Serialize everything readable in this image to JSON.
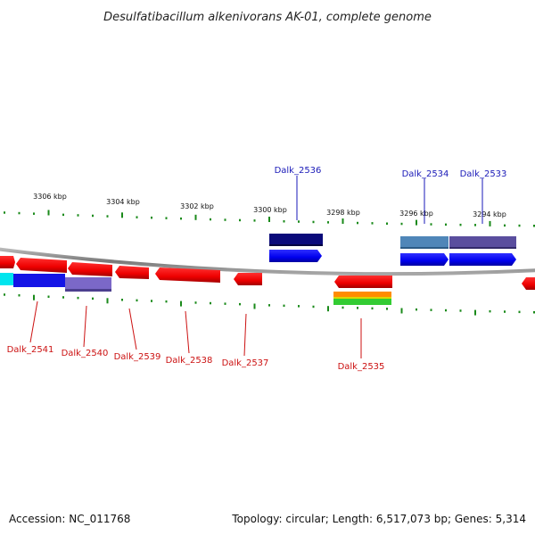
{
  "title": "Desulfatibacillum alkenivorans AK-01, complete genome",
  "footer": {
    "accession": "Accession: NC_011768",
    "summary": "Topology: circular; Length: 6,517,073 bp; Genes: 5,314"
  },
  "scale": {
    "tick_labels": [
      "3306 kbp",
      "3304 kbp",
      "3302 kbp",
      "3300 kbp",
      "3298 kbp",
      "3296 kbp",
      "3294 kbp"
    ],
    "tick_color": "#1a8a1a"
  },
  "genes_forward": [
    {
      "name": "Dalk_2536",
      "color": "#0000ee",
      "cog_color": "#0a0a7a"
    },
    {
      "name": "Dalk_2534",
      "color": "#0000ee",
      "cog_color": "#4f86b8"
    },
    {
      "name": "Dalk_2533",
      "color": "#0000ee",
      "cog_color": "#5a4e9e"
    }
  ],
  "genes_reverse": [
    {
      "name": "Dalk_2541",
      "color": "#ee0000",
      "cog_color": "#1414e6"
    },
    {
      "name": "Dalk_2540",
      "color": "#ee0000",
      "cog_color": "#7b68c8"
    },
    {
      "name": "Dalk_2539",
      "color": "#ee0000"
    },
    {
      "name": "Dalk_2538",
      "color": "#ee0000"
    },
    {
      "name": "Dalk_2537",
      "color": "#ee0000"
    },
    {
      "name": "Dalk_2535",
      "color": "#ee0000",
      "cog_color": "#ff8c00"
    }
  ],
  "colors": {
    "backbone": "#8a8a8a",
    "forward": "#0000ee",
    "reverse": "#ee0000",
    "label_forward": "#1a1ab8",
    "label_reverse": "#cc1111"
  }
}
